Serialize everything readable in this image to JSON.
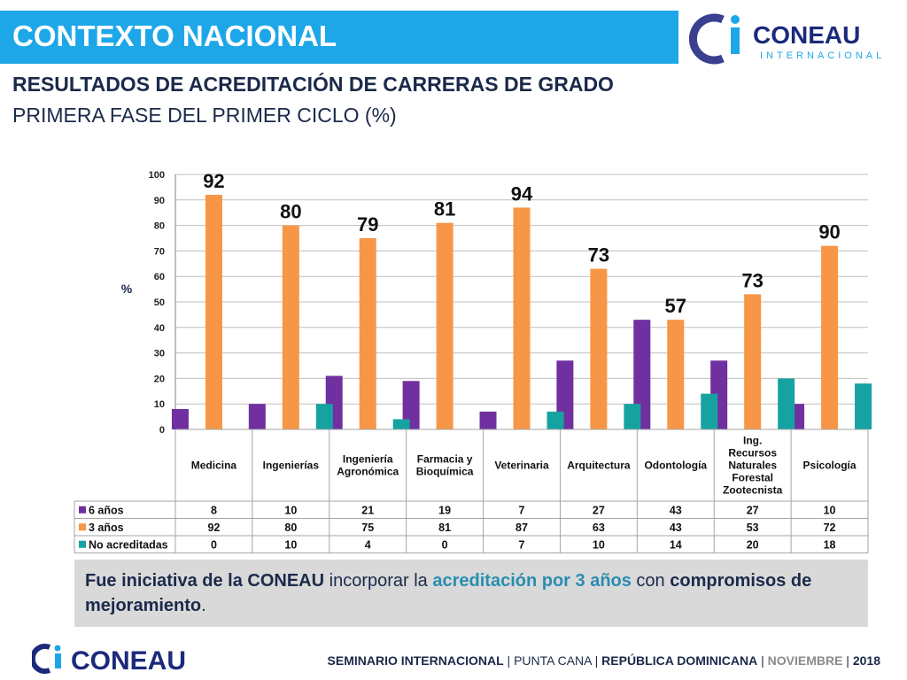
{
  "header": {
    "title": "CONTEXTO NACIONAL",
    "logo_text": "CONEAU",
    "logo_subtext": "INTERNACIONAL"
  },
  "subtitle_line1": "RESULTADOS DE ACREDITACIÓN DE CARRERAS DE GRADO",
  "subtitle_line2": "PRIMERA FASE DEL PRIMER CICLO (%)",
  "colors": {
    "title_bar": "#1ea7e8",
    "six_years": "#7030a0",
    "three_years": "#f79646",
    "not_accredited": "#17a2a2",
    "navy": "#1b2a4a"
  },
  "chart_data": {
    "type": "bar",
    "ylabel": "%",
    "ylim": [
      0,
      100
    ],
    "yticks": [
      0,
      10,
      20,
      30,
      40,
      50,
      60,
      70,
      80,
      90,
      100
    ],
    "grid": true,
    "categories": [
      [
        "Medicina"
      ],
      [
        "Ingenierías"
      ],
      [
        "Ingeniería",
        "Agronómica"
      ],
      [
        "Farmacia y",
        "Bioquímica"
      ],
      [
        "Veterinaria"
      ],
      [
        "Arquitectura"
      ],
      [
        "Odontología"
      ],
      [
        "Ing.",
        "Recursos",
        "Naturales",
        "Forestal",
        "Zootecnista"
      ],
      [
        "Psicología"
      ]
    ],
    "series": [
      {
        "name": "6 años",
        "values": [
          8,
          10,
          21,
          19,
          7,
          27,
          43,
          27,
          10
        ]
      },
      {
        "name": "3 años",
        "values": [
          92,
          80,
          75,
          81,
          87,
          63,
          43,
          53,
          72
        ]
      },
      {
        "name": "No acreditadas",
        "values": [
          0,
          10,
          4,
          0,
          7,
          10,
          14,
          20,
          18
        ]
      }
    ],
    "annotations": [
      "92",
      "80",
      "79",
      "81",
      "94",
      "73",
      "57",
      "73",
      "90"
    ],
    "legend": "data table at bottom"
  },
  "note": {
    "part1": "Fue iniciativa de la CONEAU",
    "part2": " incorporar la ",
    "part3": "acreditación por 3 años",
    "part4": " con ",
    "part5": "compromisos de mejoramiento",
    "part6": "."
  },
  "footer": {
    "part1": "SEMINARIO INTERNACIONAL",
    "sep": " | ",
    "part2": "PUNTA CANA",
    "part3": "REPÚBLICA DOMINICANA",
    "part4": "NOVIEMBRE",
    "part5": "2018"
  }
}
